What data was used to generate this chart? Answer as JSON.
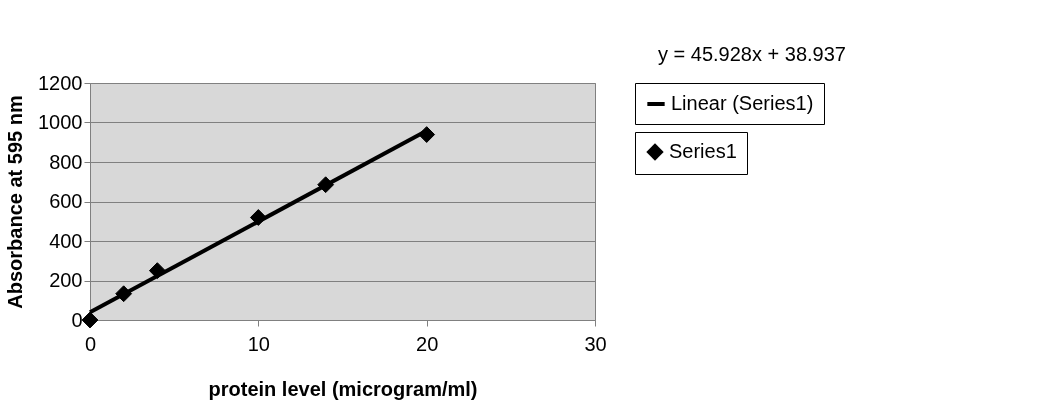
{
  "chart_data": {
    "type": "scatter",
    "xlabel": "protein level  (microgram/ml)",
    "ylabel": "Absorbance at 595 nm",
    "annotations": [
      "y = 45.928x + 38.937"
    ],
    "series": [
      {
        "name": "Series1",
        "color": "#000000",
        "marker": "diamond",
        "x": [
          0,
          2,
          4,
          10,
          14,
          20
        ],
        "values": [
          0,
          133,
          250,
          519,
          685,
          939
        ]
      },
      {
        "name": "Linear (Series1)",
        "type": "line",
        "color": "#000000",
        "line_style": "solid",
        "x": [
          0,
          20
        ],
        "values": [
          39,
          958
        ]
      }
    ],
    "xlim": [
      0,
      30
    ],
    "xticks": [
      0,
      10,
      20,
      30
    ],
    "ylim": [
      0,
      1200
    ],
    "yticks": [
      0,
      200,
      400,
      600,
      800,
      1000,
      1200
    ],
    "grid": "y",
    "legend": "right"
  }
}
